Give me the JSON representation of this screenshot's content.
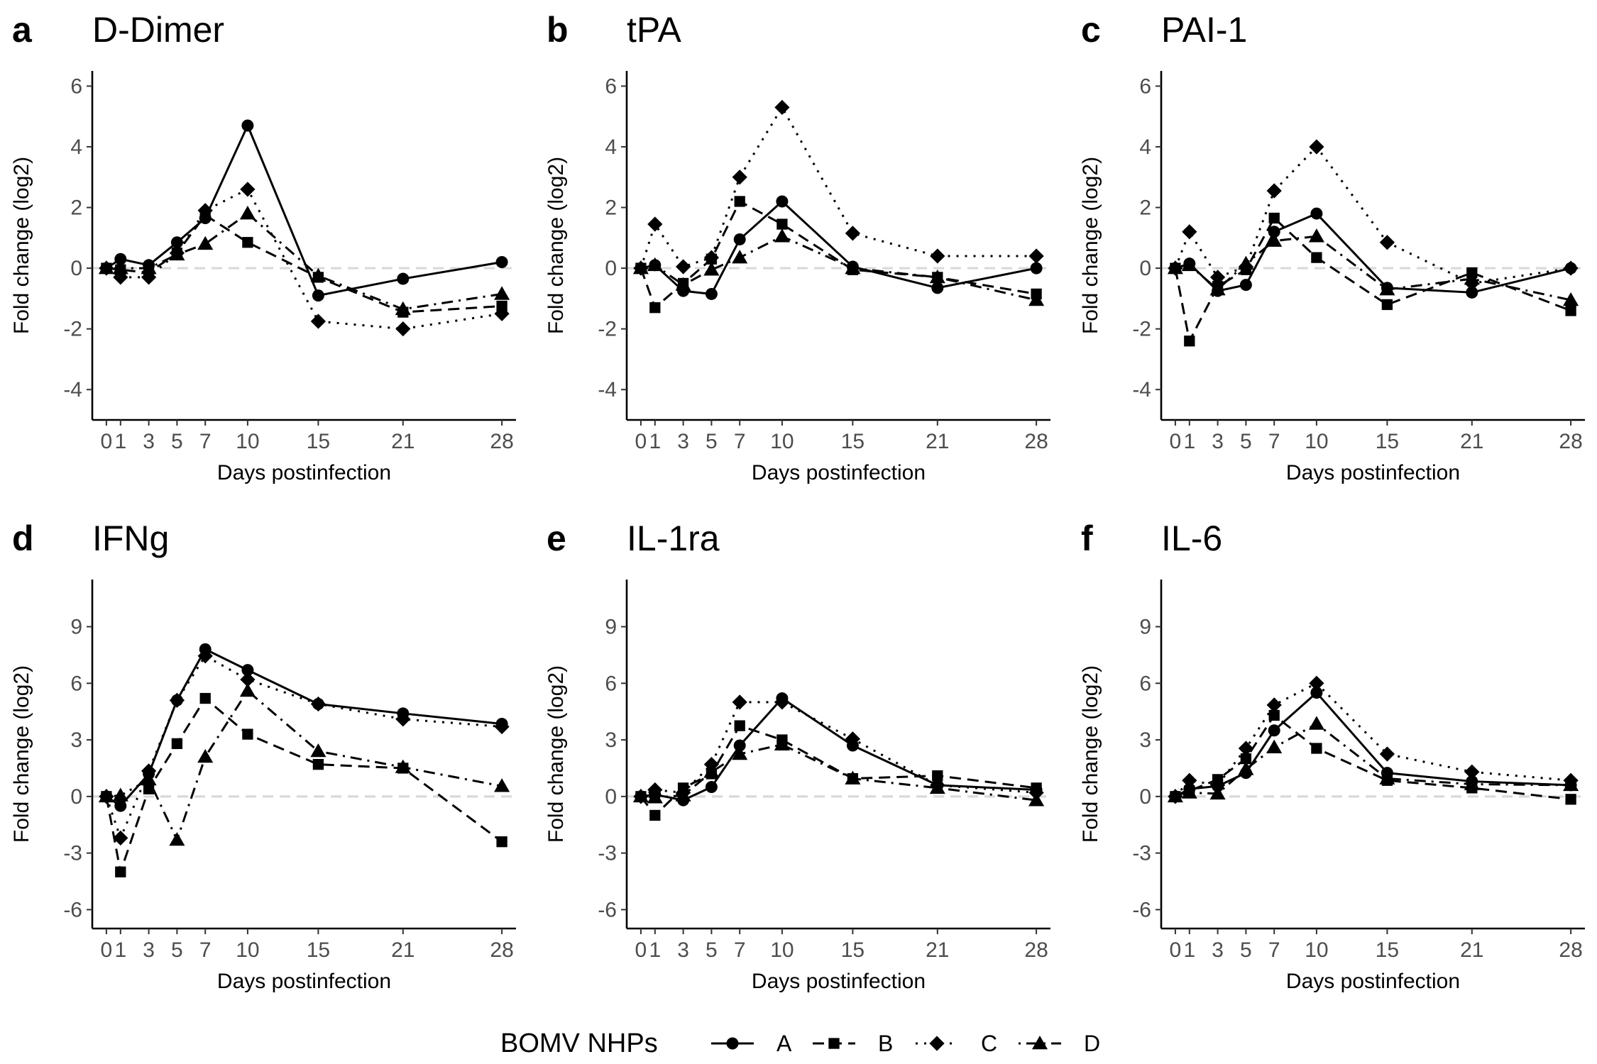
{
  "chart_data": [
    {
      "type": "line",
      "letter": "a",
      "title": "D-Dimer",
      "xlabel": "Days postinfection",
      "ylabel": "Fold change (log2)",
      "x_ticks": [
        0,
        1,
        3,
        5,
        7,
        10,
        15,
        21,
        28
      ],
      "y_ticks": [
        -4,
        -2,
        0,
        2,
        4,
        6
      ],
      "ylim": [
        -5,
        6.5
      ],
      "grid": false,
      "reference_line": 0,
      "x": [
        0,
        1,
        3,
        5,
        7,
        10,
        15,
        21,
        28
      ],
      "series": [
        {
          "name": "A",
          "values": [
            0.0,
            0.3,
            0.1,
            0.85,
            1.65,
            4.7,
            -0.9,
            -0.35,
            0.2
          ]
        },
        {
          "name": "B",
          "values": [
            0.0,
            -0.05,
            -0.15,
            0.5,
            1.75,
            0.85,
            -0.3,
            -1.45,
            -1.25
          ]
        },
        {
          "name": "C",
          "values": [
            0.0,
            -0.3,
            -0.3,
            0.5,
            1.9,
            2.6,
            -1.75,
            -2.0,
            -1.5
          ]
        },
        {
          "name": "D",
          "values": [
            0.0,
            0.0,
            0.0,
            0.45,
            0.8,
            1.8,
            -0.25,
            -1.35,
            -0.85
          ]
        }
      ]
    },
    {
      "type": "line",
      "letter": "b",
      "title": "tPA",
      "xlabel": "Days postinfection",
      "ylabel": "Fold change (log2)",
      "x_ticks": [
        0,
        1,
        3,
        5,
        7,
        10,
        15,
        21,
        28
      ],
      "y_ticks": [
        -4,
        -2,
        0,
        2,
        4,
        6
      ],
      "ylim": [
        -5,
        6.5
      ],
      "grid": false,
      "reference_line": 0,
      "x": [
        0,
        1,
        3,
        5,
        7,
        10,
        15,
        21,
        28
      ],
      "series": [
        {
          "name": "A",
          "values": [
            0.0,
            0.1,
            -0.75,
            -0.85,
            0.95,
            2.2,
            0.05,
            -0.65,
            0.0
          ]
        },
        {
          "name": "B",
          "values": [
            0.0,
            -1.3,
            -0.5,
            0.3,
            2.2,
            1.45,
            -0.05,
            -0.3,
            -0.85
          ]
        },
        {
          "name": "C",
          "values": [
            0.0,
            1.45,
            0.05,
            0.35,
            3.0,
            5.3,
            1.15,
            0.4,
            0.4
          ]
        },
        {
          "name": "D",
          "values": [
            0.0,
            0.1,
            -0.55,
            -0.05,
            0.35,
            1.05,
            0.0,
            -0.3,
            -1.05
          ]
        }
      ]
    },
    {
      "type": "line",
      "letter": "c",
      "title": "PAI-1",
      "xlabel": "Days postinfection",
      "ylabel": "Fold change (log2)",
      "x_ticks": [
        0,
        1,
        3,
        5,
        7,
        10,
        15,
        21,
        28
      ],
      "y_ticks": [
        -4,
        -2,
        0,
        2,
        4,
        6
      ],
      "ylim": [
        -5,
        6.5
      ],
      "grid": false,
      "reference_line": 0,
      "x": [
        0,
        1,
        3,
        5,
        7,
        10,
        15,
        21,
        28
      ],
      "series": [
        {
          "name": "A",
          "values": [
            0.0,
            0.15,
            -0.75,
            -0.55,
            1.2,
            1.8,
            -0.65,
            -0.8,
            0.0
          ]
        },
        {
          "name": "B",
          "values": [
            0.0,
            -2.4,
            -0.6,
            -0.05,
            1.65,
            0.35,
            -1.2,
            -0.15,
            -1.4
          ]
        },
        {
          "name": "C",
          "values": [
            0.0,
            1.2,
            -0.3,
            0.05,
            2.55,
            4.0,
            0.85,
            -0.5,
            0.0
          ]
        },
        {
          "name": "D",
          "values": [
            0.0,
            0.1,
            -0.7,
            0.15,
            0.9,
            1.05,
            -0.7,
            -0.35,
            -1.05
          ]
        }
      ]
    },
    {
      "type": "line",
      "letter": "d",
      "title": "IFNg",
      "xlabel": "Days postinfection",
      "ylabel": "Fold change (log2)",
      "x_ticks": [
        0,
        1,
        3,
        5,
        7,
        10,
        15,
        21,
        28
      ],
      "y_ticks": [
        -6,
        -3,
        0,
        3,
        6,
        9
      ],
      "ylim": [
        -7,
        11.5
      ],
      "grid": false,
      "reference_line": 0,
      "x": [
        0,
        1,
        3,
        5,
        7,
        10,
        15,
        21,
        28
      ],
      "series": [
        {
          "name": "A",
          "values": [
            0.0,
            -0.5,
            1.2,
            5.1,
            7.8,
            6.7,
            4.9,
            4.4,
            3.85
          ]
        },
        {
          "name": "B",
          "values": [
            0.0,
            -4.0,
            0.4,
            2.8,
            5.2,
            3.3,
            1.7,
            1.5,
            -2.4
          ]
        },
        {
          "name": "C",
          "values": [
            0.0,
            -2.2,
            1.35,
            5.1,
            7.45,
            6.2,
            4.9,
            4.1,
            3.7
          ]
        },
        {
          "name": "D",
          "values": [
            0.0,
            0.05,
            0.9,
            -2.3,
            2.1,
            5.6,
            2.4,
            1.55,
            0.55
          ]
        }
      ]
    },
    {
      "type": "line",
      "letter": "e",
      "title": "IL-1ra",
      "xlabel": "Days postinfection",
      "ylabel": "Fold change (log2)",
      "x_ticks": [
        0,
        1,
        3,
        5,
        7,
        10,
        15,
        21,
        28
      ],
      "y_ticks": [
        -6,
        -3,
        0,
        3,
        6,
        9
      ],
      "ylim": [
        -7,
        11.5
      ],
      "grid": false,
      "reference_line": 0,
      "x": [
        0,
        1,
        3,
        5,
        7,
        10,
        15,
        21,
        28
      ],
      "series": [
        {
          "name": "A",
          "values": [
            0.0,
            0.1,
            -0.2,
            0.5,
            2.7,
            5.2,
            2.7,
            0.6,
            0.35
          ]
        },
        {
          "name": "B",
          "values": [
            0.0,
            -1.0,
            0.45,
            1.2,
            3.75,
            3.0,
            0.95,
            1.1,
            0.45
          ]
        },
        {
          "name": "C",
          "values": [
            0.0,
            0.35,
            0.2,
            1.7,
            5.0,
            5.0,
            3.05,
            0.6,
            0.2
          ]
        },
        {
          "name": "D",
          "values": [
            0.0,
            -0.05,
            0.05,
            1.3,
            2.25,
            2.75,
            0.95,
            0.45,
            -0.2
          ]
        }
      ]
    },
    {
      "type": "line",
      "letter": "f",
      "title": "IL-6",
      "xlabel": "Days postinfection",
      "ylabel": "Fold change (log2)",
      "x_ticks": [
        0,
        1,
        3,
        5,
        7,
        10,
        15,
        21,
        28
      ],
      "y_ticks": [
        -6,
        -3,
        0,
        3,
        6,
        9
      ],
      "ylim": [
        -7,
        11.5
      ],
      "grid": false,
      "reference_line": 0,
      "x": [
        0,
        1,
        3,
        5,
        7,
        10,
        15,
        21,
        28
      ],
      "series": [
        {
          "name": "A",
          "values": [
            0.0,
            0.4,
            0.55,
            1.25,
            3.5,
            5.5,
            1.25,
            0.8,
            0.6
          ]
        },
        {
          "name": "B",
          "values": [
            0.0,
            0.3,
            0.9,
            2.0,
            4.3,
            2.55,
            0.85,
            0.45,
            -0.15
          ]
        },
        {
          "name": "C",
          "values": [
            0.0,
            0.85,
            0.6,
            2.55,
            4.85,
            6.0,
            2.25,
            1.3,
            0.85
          ]
        },
        {
          "name": "D",
          "values": [
            0.0,
            0.2,
            0.15,
            1.45,
            2.6,
            3.85,
            0.95,
            0.65,
            0.6
          ]
        }
      ]
    }
  ],
  "legend": {
    "title": "BOMV NHPs",
    "position": "bottom",
    "items": [
      {
        "label": "A",
        "marker": "circle",
        "dash": "solid"
      },
      {
        "label": "B",
        "marker": "square",
        "dash": "dashed"
      },
      {
        "label": "C",
        "marker": "diamond",
        "dash": "dotted"
      },
      {
        "label": "D",
        "marker": "triangle",
        "dash": "dotdash"
      }
    ]
  },
  "colors": {
    "series": "#000000",
    "reference_line": "#d9d9d9",
    "tick_label": "#4d4d4d"
  }
}
